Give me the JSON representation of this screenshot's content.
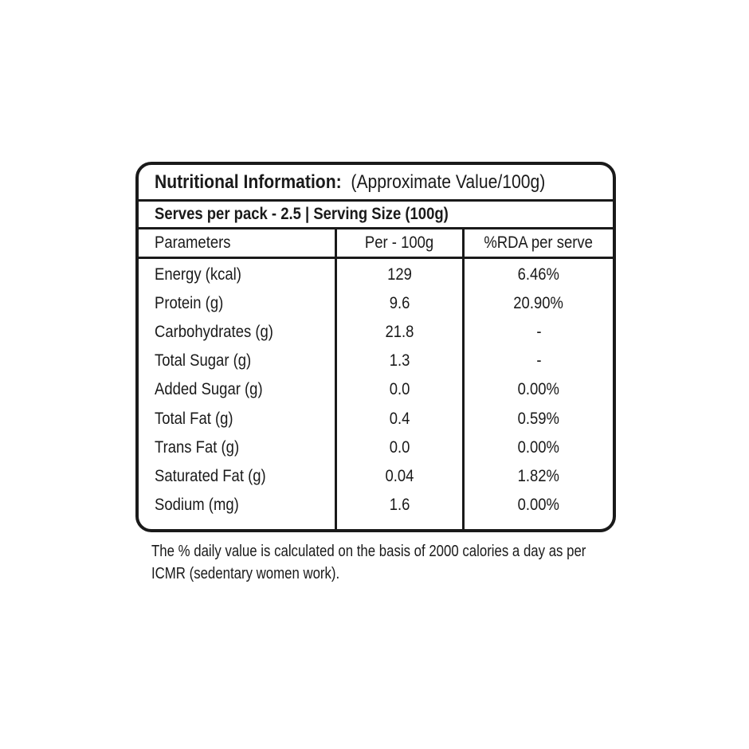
{
  "label": {
    "title_bold": "Nutritional Information:",
    "title_regular": "(Approximate Value/100g)",
    "serving_line": "Serves per pack - 2.5 | Serving Size (100g)",
    "columns": [
      "Parameters",
      "Per - 100g",
      "%RDA per serve"
    ],
    "rows": [
      {
        "parameter": "Energy (kcal)",
        "per_100g": "129",
        "rda_per_serve": "6.46%"
      },
      {
        "parameter": "Protein (g)",
        "per_100g": "9.6",
        "rda_per_serve": "20.90%"
      },
      {
        "parameter": "Carbohydrates (g)",
        "per_100g": "21.8",
        "rda_per_serve": "-"
      },
      {
        "parameter": "Total Sugar (g)",
        "per_100g": "1.3",
        "rda_per_serve": "-"
      },
      {
        "parameter": "Added Sugar (g)",
        "per_100g": "0.0",
        "rda_per_serve": "0.00%"
      },
      {
        "parameter": "Total Fat (g)",
        "per_100g": "0.4",
        "rda_per_serve": "0.59%"
      },
      {
        "parameter": "Trans Fat (g)",
        "per_100g": "0.0",
        "rda_per_serve": "0.00%"
      },
      {
        "parameter": "Saturated Fat (g)",
        "per_100g": "0.04",
        "rda_per_serve": "1.82%"
      },
      {
        "parameter": "Sodium (mg)",
        "per_100g": "1.6",
        "rda_per_serve": "0.00%"
      }
    ],
    "footnote_lines": [
      "The % daily value is calculated on the basis of 2000 calories a day as per",
      "ICMR (sedentary women work)."
    ],
    "colors": {
      "border": "#1a1a1a",
      "text": "#1a1a1a",
      "background": "#ffffff"
    }
  }
}
